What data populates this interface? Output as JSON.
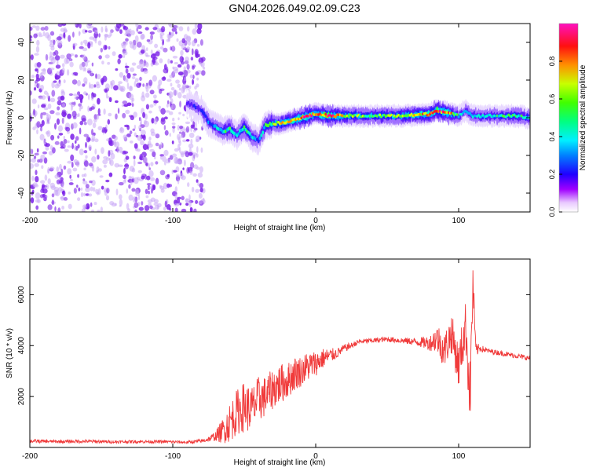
{
  "title": "GN04.2026.049.02.09.C23",
  "colors": {
    "snr_line": "#f03a3a",
    "noise_dots": "#7a1fe8",
    "noise_dots_light": "#c9a8f5",
    "ridge_ramp": [
      "#ffffff",
      "#e8d8ff",
      "#a070ff",
      "#5b1dff",
      "#1d25ff",
      "#00b0ff",
      "#00ffd0",
      "#4cff30",
      "#d8ff00",
      "#ff8c00",
      "#ff2020",
      "#ff00a0"
    ]
  },
  "chart_data": [
    {
      "type": "heatmap",
      "name": "spectrogram",
      "title": "GN04.2026.049.02.09.C23",
      "xlabel": "Height of straight line (km)",
      "ylabel": "Frequency (Hz)",
      "xlim": [
        -200,
        150
      ],
      "ylim": [
        -50,
        50
      ],
      "xticks": [
        -200,
        -100,
        0,
        100
      ],
      "xtick_labels": [
        "-200",
        "-100",
        "0",
        "100"
      ],
      "yticks": [
        -40,
        -20,
        0,
        20,
        40
      ],
      "ytick_labels": [
        "-40",
        "-20",
        "0",
        "20",
        "40"
      ],
      "noise_region_x": [
        -200,
        -78
      ],
      "ridge": {
        "x": [
          -90,
          -80,
          -75,
          -70,
          -65,
          -60,
          -55,
          -50,
          -45,
          -40,
          -35,
          -30,
          -25,
          -20,
          -15,
          -10,
          -5,
          0,
          10,
          20,
          40,
          60,
          80,
          85,
          90,
          95,
          100,
          105,
          110,
          120,
          140,
          150
        ],
        "freq": [
          8,
          4,
          -2,
          -5,
          -7,
          -6,
          -9,
          -5,
          -10,
          -12,
          -4,
          -3,
          -3,
          -2,
          -1,
          0,
          1,
          2,
          1,
          1,
          1,
          1,
          2,
          4,
          3,
          2,
          1,
          4,
          1,
          1,
          1,
          0
        ],
        "amplitude": [
          0.3,
          0.35,
          0.4,
          0.45,
          0.5,
          0.55,
          0.45,
          0.6,
          0.5,
          0.4,
          0.6,
          0.65,
          0.7,
          0.75,
          0.8,
          0.85,
          0.9,
          0.8,
          0.95,
          0.7,
          0.6,
          0.7,
          0.8,
          0.9,
          0.85,
          0.8,
          0.5,
          0.4,
          0.5,
          0.5,
          0.6,
          0.5
        ]
      },
      "colorbar": {
        "label": "Normalized spectral amplitude",
        "range": [
          0,
          1
        ],
        "ticks": [
          0.0,
          0.2,
          0.4,
          0.6,
          0.8
        ],
        "tick_labels": [
          "0.0",
          "0.2",
          "0.4",
          "0.6",
          "0.8"
        ]
      }
    },
    {
      "type": "line",
      "name": "snr",
      "xlabel": "Height of straight line (km)",
      "ylabel": "SNR (10 * v/v)",
      "xlim": [
        -200,
        150
      ],
      "ylim": [
        0,
        7400
      ],
      "xticks": [
        -200,
        -100,
        0,
        100
      ],
      "xtick_labels": [
        "-200",
        "-100",
        "0",
        "100"
      ],
      "yticks": [
        2000,
        4000,
        6000
      ],
      "ytick_labels": [
        "2000",
        "4000",
        "6000"
      ],
      "series": [
        {
          "name": "SNR",
          "x": [
            -200,
            -180,
            -160,
            -140,
            -120,
            -100,
            -90,
            -80,
            -75,
            -70,
            -65,
            -60,
            -55,
            -50,
            -45,
            -40,
            -35,
            -30,
            -25,
            -20,
            -15,
            -10,
            -5,
            0,
            5,
            10,
            15,
            20,
            25,
            30,
            40,
            50,
            60,
            70,
            80,
            85,
            90,
            95,
            100,
            105,
            108,
            110,
            112,
            115,
            120,
            130,
            140,
            150
          ],
          "y": [
            250,
            230,
            240,
            220,
            230,
            220,
            200,
            250,
            320,
            450,
            650,
            1000,
            1400,
            1600,
            1500,
            1900,
            2000,
            2300,
            2500,
            2600,
            2900,
            3000,
            3200,
            3300,
            3500,
            3600,
            3700,
            3900,
            4000,
            4150,
            4200,
            4250,
            4200,
            4150,
            4100,
            4300,
            3800,
            4500,
            3200,
            4800,
            2000,
            6500,
            3800,
            3900,
            3800,
            3700,
            3600,
            3500
          ],
          "noise_amplitude": [
            70,
            60,
            60,
            60,
            60,
            60,
            60,
            80,
            100,
            200,
            500,
            800,
            900,
            1000,
            900,
            900,
            800,
            800,
            800,
            700,
            700,
            600,
            600,
            500,
            400,
            300,
            200,
            150,
            120,
            100,
            100,
            100,
            120,
            150,
            300,
            600,
            700,
            800,
            900,
            1000,
            1500,
            800,
            300,
            150,
            100,
            100,
            100,
            100
          ]
        }
      ]
    }
  ]
}
